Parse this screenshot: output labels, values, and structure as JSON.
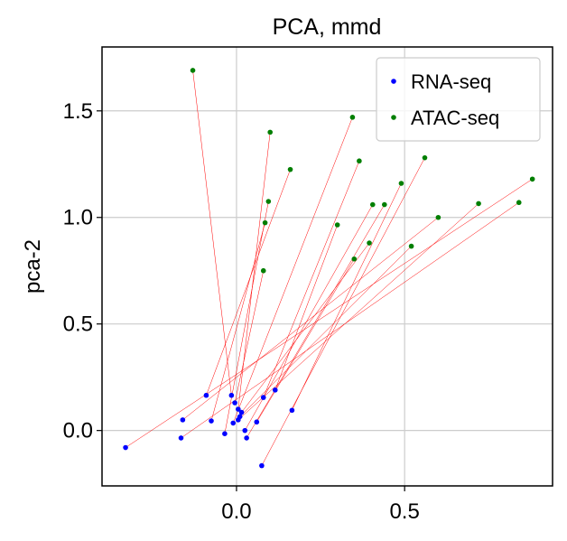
{
  "chart_data": {
    "type": "scatter",
    "title": "PCA, mmd",
    "xlabel": "",
    "ylabel": "pca-2",
    "xlim": [
      -0.4,
      0.94
    ],
    "ylim": [
      -0.26,
      1.8
    ],
    "xticks": [
      0.0,
      0.5
    ],
    "xtick_labels": [
      "0.0",
      "0.5"
    ],
    "yticks": [
      0.0,
      0.5,
      1.0,
      1.5
    ],
    "ytick_labels": [
      "0.0",
      "0.5",
      "1.0",
      "1.5"
    ],
    "grid": true,
    "legend_position": "top-right",
    "series": [
      {
        "name": "RNA-seq",
        "color": "#0000ff",
        "points": [
          [
            -0.33,
            -0.08
          ],
          [
            -0.16,
            0.05
          ],
          [
            -0.165,
            -0.035
          ],
          [
            -0.09,
            0.165
          ],
          [
            -0.075,
            0.045
          ],
          [
            -0.035,
            -0.015
          ],
          [
            -0.015,
            0.165
          ],
          [
            -0.01,
            0.035
          ],
          [
            -0.005,
            0.13
          ],
          [
            0.005,
            0.1
          ],
          [
            0.01,
            0.065
          ],
          [
            0.015,
            0.085
          ],
          [
            0.025,
            0.0
          ],
          [
            0.03,
            -0.035
          ],
          [
            0.06,
            0.04
          ],
          [
            0.075,
            -0.165
          ],
          [
            0.08,
            0.155
          ],
          [
            0.115,
            0.19
          ],
          [
            0.165,
            0.095
          ],
          [
            0.005,
            0.05
          ]
        ]
      },
      {
        "name": "ATAC-seq",
        "color": "#007f00",
        "points": [
          [
            -0.13,
            1.69
          ],
          [
            0.1,
            1.4
          ],
          [
            0.345,
            1.47
          ],
          [
            0.16,
            1.225
          ],
          [
            0.365,
            1.265
          ],
          [
            0.56,
            1.28
          ],
          [
            0.095,
            1.075
          ],
          [
            0.085,
            0.975
          ],
          [
            0.3,
            0.965
          ],
          [
            0.405,
            1.06
          ],
          [
            0.44,
            1.06
          ],
          [
            0.49,
            1.16
          ],
          [
            0.6,
            1.0
          ],
          [
            0.72,
            1.065
          ],
          [
            0.84,
            1.07
          ],
          [
            0.88,
            1.18
          ],
          [
            0.08,
            0.75
          ],
          [
            0.35,
            0.805
          ],
          [
            0.395,
            0.88
          ],
          [
            0.52,
            0.865
          ]
        ]
      }
    ],
    "links": {
      "color": "#ff0000",
      "pairs": [
        [
          0,
          15
        ],
        [
          1,
          12
        ],
        [
          2,
          14
        ],
        [
          3,
          3
        ],
        [
          4,
          7
        ],
        [
          5,
          6
        ],
        [
          6,
          0
        ],
        [
          7,
          2
        ],
        [
          8,
          16
        ],
        [
          9,
          1
        ],
        [
          10,
          19
        ],
        [
          11,
          18
        ],
        [
          12,
          9
        ],
        [
          13,
          10
        ],
        [
          14,
          17
        ],
        [
          15,
          5
        ],
        [
          16,
          4
        ],
        [
          17,
          8
        ],
        [
          18,
          11
        ],
        [
          19,
          13
        ]
      ]
    }
  }
}
